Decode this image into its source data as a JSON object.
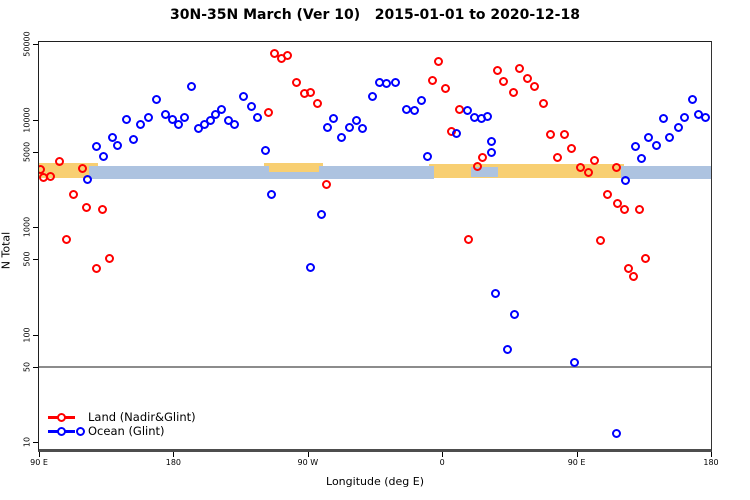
{
  "title": "30N-35N March (Ver 10)   2015-01-01 to 2020-12-18",
  "x_axis": {
    "label": "Longitude (deg E)",
    "ticks": [
      {
        "lon": 90,
        "label": "90 E"
      },
      {
        "lon": 180,
        "label": "180"
      },
      {
        "lon": 270,
        "label": "90 W"
      },
      {
        "lon": 360,
        "label": "0"
      },
      {
        "lon": 450,
        "label": "90 E"
      },
      {
        "lon": 540,
        "label": "180"
      }
    ]
  },
  "y_axis": {
    "label": "N Total",
    "ticks": [
      {
        "value": 50000,
        "label": "50000"
      },
      {
        "value": 10000,
        "label": "10000"
      },
      {
        "value": 5000,
        "label": "5000"
      },
      {
        "value": 1000,
        "label": "1000"
      },
      {
        "value": 500,
        "label": "500"
      },
      {
        "value": 100,
        "label": "100"
      },
      {
        "value": 50,
        "label": "50"
      },
      {
        "value": 10,
        "label": "10"
      }
    ]
  },
  "legend": {
    "items": [
      {
        "label": "Land (Nadir&Glint)",
        "color": "#ff0000"
      },
      {
        "label": "Ocean (Glint)",
        "color": "#0000ff"
      }
    ]
  },
  "chart_data": {
    "type": "scatter",
    "x_range": [
      90,
      540
    ],
    "y_scale": "log",
    "y_range": [
      10,
      50000
    ],
    "reference_line": {
      "value": 50,
      "color": "#8c8c8c"
    },
    "bands": {
      "note": "horizontal land/ocean strip near N~3300",
      "land_color": "#f8cf72",
      "ocean_color": "#adc3e0",
      "land_segments": [
        {
          "lon1": 90,
          "lon2": 129.3,
          "n_lo": 2860,
          "n_hi": 3940
        },
        {
          "lon1": 128.9,
          "lon2": 142.3,
          "n_lo": 2800,
          "n_hi": 3250
        },
        {
          "lon1": 240.6,
          "lon2": 280.2,
          "n_lo": 3250,
          "n_hi": 3940
        },
        {
          "lon1": 351.1,
          "lon2": 481.7,
          "n_lo": 2860,
          "n_hi": 3860
        },
        {
          "lon1": 483.0,
          "lon2": 498.4,
          "n_lo": 2800,
          "n_hi": 3100
        }
      ],
      "ocean_segments": [
        {
          "lon1": 123.5,
          "lon2": 244.0,
          "n_lo": 2800,
          "n_hi": 3690
        },
        {
          "lon1": 240.6,
          "lon2": 280.2,
          "n_lo": 2800,
          "n_hi": 3250
        },
        {
          "lon1": 277.5,
          "lon2": 354.5,
          "n_lo": 2800,
          "n_hi": 3690
        },
        {
          "lon1": 379.2,
          "lon2": 397.3,
          "n_lo": 2920,
          "n_hi": 3590
        },
        {
          "lon1": 479.7,
          "lon2": 540.0,
          "n_lo": 2800,
          "n_hi": 3690
        }
      ]
    },
    "series": [
      {
        "name": "Land (Nadir&Glint)",
        "color": "#ff0000",
        "points": [
          [
            91.3,
            3400
          ],
          [
            92.7,
            2860
          ],
          [
            98,
            2920
          ],
          [
            103.4,
            4030
          ],
          [
            118.8,
            3470
          ],
          [
            112.8,
            1990
          ],
          [
            122.1,
            1530
          ],
          [
            132.2,
            1470
          ],
          [
            108.7,
            757
          ],
          [
            128.2,
            407
          ],
          [
            136.9,
            504
          ],
          [
            244,
            11700
          ],
          [
            248,
            40700
          ],
          [
            252.7,
            37300
          ],
          [
            256.7,
            39800
          ],
          [
            262.7,
            22300
          ],
          [
            268.1,
            17300
          ],
          [
            272.1,
            17700
          ],
          [
            276.8,
            14200
          ],
          [
            282.2,
            2460
          ],
          [
            357.2,
            34300
          ],
          [
            353.8,
            23300
          ],
          [
            362.5,
            19600
          ],
          [
            371.9,
            12300
          ],
          [
            365.9,
            7660
          ],
          [
            383.9,
            3690
          ],
          [
            387.3,
            4390
          ],
          [
            377.9,
            773
          ],
          [
            397.3,
            28300
          ],
          [
            401.3,
            22800
          ],
          [
            408,
            17700
          ],
          [
            412,
            30100
          ],
          [
            417.4,
            24300
          ],
          [
            422,
            20100
          ],
          [
            428.1,
            14200
          ],
          [
            432.8,
            7180
          ],
          [
            442.2,
            7180
          ],
          [
            437.5,
            4390
          ],
          [
            446.9,
            5430
          ],
          [
            452.9,
            3540
          ],
          [
            458.3,
            3180
          ],
          [
            462.3,
            4200
          ],
          [
            476.4,
            3600
          ],
          [
            471,
            1990
          ],
          [
            477.7,
            1640
          ],
          [
            482.4,
            1470
          ],
          [
            466.3,
            750
          ],
          [
            485,
            407
          ],
          [
            488.4,
            350
          ],
          [
            496.4,
            504
          ],
          [
            492.4,
            1470
          ]
        ]
      },
      {
        "name": "Ocean (Glint)",
        "color": "#0000ff",
        "points": [
          [
            118.1,
            12.6
          ],
          [
            122.8,
            2740
          ],
          [
            128.2,
            5550
          ],
          [
            133.5,
            4480
          ],
          [
            139.5,
            6730
          ],
          [
            142.9,
            5790
          ],
          [
            148.9,
            10100
          ],
          [
            153.6,
            6580
          ],
          [
            158.3,
            8890
          ],
          [
            163.6,
            10500
          ],
          [
            169,
            15500
          ],
          [
            175,
            11200
          ],
          [
            179.1,
            10100
          ],
          [
            183.1,
            8890
          ],
          [
            187.1,
            10500
          ],
          [
            192.4,
            20100
          ],
          [
            197.1,
            8160
          ],
          [
            201.1,
            8890
          ],
          [
            205.1,
            9890
          ],
          [
            208.5,
            11200
          ],
          [
            212.5,
            12300
          ],
          [
            217.2,
            9890
          ],
          [
            221.2,
            8890
          ],
          [
            227.2,
            16200
          ],
          [
            232.6,
            13100
          ],
          [
            236.6,
            10500
          ],
          [
            242,
            5200
          ],
          [
            246,
            1990
          ],
          [
            272.1,
            416
          ],
          [
            279.5,
            1320
          ],
          [
            283.5,
            8510
          ],
          [
            287.5,
            10300
          ],
          [
            292.9,
            6870
          ],
          [
            298.2,
            8510
          ],
          [
            302.3,
            9890
          ],
          [
            306.9,
            8160
          ],
          [
            313.6,
            16200
          ],
          [
            317.7,
            21900
          ],
          [
            323,
            21400
          ],
          [
            329,
            21900
          ],
          [
            336.4,
            12300
          ],
          [
            341.7,
            12100
          ],
          [
            346.4,
            14900
          ],
          [
            350.4,
            4480
          ],
          [
            369.9,
            7480
          ],
          [
            377.2,
            12100
          ],
          [
            381.9,
            10500
          ],
          [
            386.6,
            10300
          ],
          [
            390.6,
            10700
          ],
          [
            393.3,
            6180
          ],
          [
            393.3,
            4880
          ],
          [
            396,
            243
          ],
          [
            404,
            73
          ],
          [
            408.7,
            155
          ],
          [
            448.9,
            55
          ],
          [
            477,
            12
          ],
          [
            483,
            2680
          ],
          [
            489.7,
            5550
          ],
          [
            493.7,
            4300
          ],
          [
            498.4,
            6730
          ],
          [
            503.7,
            5790
          ],
          [
            508.4,
            10300
          ],
          [
            512.4,
            6730
          ],
          [
            518.4,
            8510
          ],
          [
            522.4,
            10500
          ],
          [
            527.7,
            15200
          ],
          [
            531.7,
            11200
          ],
          [
            536.4,
            10500
          ]
        ]
      }
    ]
  }
}
